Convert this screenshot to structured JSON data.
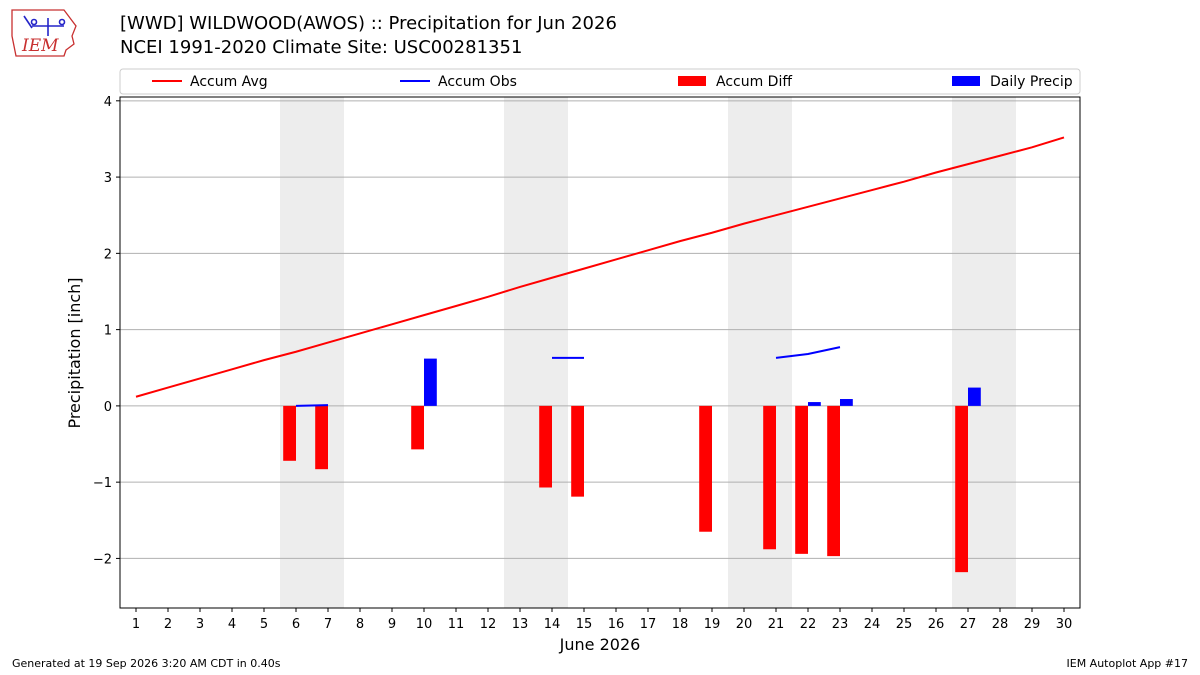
{
  "header": {
    "title": "[WWD] WILDWOOD(AWOS) :: Precipitation for Jun 2026",
    "subtitle": "NCEI 1991-2020 Climate Site: USC00281351",
    "logo_text": "IEM"
  },
  "footer": {
    "left": "Generated at 19 Sep 2026 3:20 AM CDT in 0.40s",
    "right": "IEM Autoplot App #17"
  },
  "colors": {
    "avg": "#ff0000",
    "obs": "#0000ff",
    "diff": "#ff0000",
    "daily": "#0000ff",
    "weekend_shade": "#ededed",
    "grid": "#b0b0b0"
  },
  "chart_data": {
    "type": "bar",
    "xlabel": "June 2026",
    "ylabel": "Precipitation [inch]",
    "xlim": [
      0.5,
      30.5
    ],
    "ylim": [
      -2.65,
      4.05
    ],
    "yticks": [
      4,
      3,
      2,
      1,
      0,
      -1,
      -2
    ],
    "ytick_labels": [
      "4",
      "3",
      "2",
      "1",
      "0",
      "−1",
      "−2"
    ],
    "xticks": [
      1,
      2,
      3,
      4,
      5,
      6,
      7,
      8,
      9,
      10,
      11,
      12,
      13,
      14,
      15,
      16,
      17,
      18,
      19,
      20,
      21,
      22,
      23,
      24,
      25,
      26,
      27,
      28,
      29,
      30
    ],
    "grid": "horizontal",
    "legend": {
      "placement": "top",
      "entries": [
        {
          "label": "Accum Avg",
          "kind": "line",
          "color": "#ff0000"
        },
        {
          "label": "Accum Obs",
          "kind": "line",
          "color": "#0000ff"
        },
        {
          "label": "Accum Diff",
          "kind": "patch",
          "color": "#ff0000"
        },
        {
          "label": "Daily Precip",
          "kind": "patch",
          "color": "#0000ff"
        }
      ]
    },
    "weekend_spans": [
      [
        5.5,
        7.5
      ],
      [
        12.5,
        14.5
      ],
      [
        19.5,
        21.5
      ],
      [
        26.5,
        28.5
      ]
    ],
    "series": [
      {
        "name": "Accum Avg",
        "type": "line",
        "x": [
          1,
          2,
          3,
          4,
          5,
          6,
          7,
          8,
          9,
          10,
          11,
          12,
          13,
          14,
          15,
          16,
          17,
          18,
          19,
          20,
          21,
          22,
          23,
          24,
          25,
          26,
          27,
          28,
          29,
          30
        ],
        "values": [
          0.12,
          0.24,
          0.36,
          0.48,
          0.6,
          0.71,
          0.83,
          0.95,
          1.07,
          1.19,
          1.31,
          1.43,
          1.56,
          1.68,
          1.8,
          1.92,
          2.04,
          2.16,
          2.27,
          2.39,
          2.5,
          2.61,
          2.72,
          2.83,
          2.94,
          3.06,
          3.17,
          3.28,
          3.39,
          3.52
        ]
      },
      {
        "name": "Accum Obs",
        "type": "line",
        "segments": [
          {
            "x": [
              6,
              7
            ],
            "values": [
              0.0,
              0.01
            ]
          },
          {
            "x": [
              14,
              15
            ],
            "values": [
              0.63,
              0.63
            ]
          },
          {
            "x": [
              21,
              22,
              23
            ],
            "values": [
              0.63,
              0.68,
              0.77
            ]
          }
        ]
      },
      {
        "name": "Accum Diff",
        "type": "bar",
        "x": [
          6,
          7,
          10,
          14,
          15,
          19,
          21,
          22,
          23,
          27
        ],
        "values": [
          -0.72,
          -0.83,
          -0.57,
          -1.07,
          -1.19,
          -1.65,
          -1.88,
          -1.94,
          -1.97,
          -2.18
        ]
      },
      {
        "name": "Daily Precip",
        "type": "bar",
        "x": [
          10,
          22,
          23,
          27
        ],
        "values": [
          0.62,
          0.05,
          0.09,
          0.24
        ]
      }
    ]
  }
}
